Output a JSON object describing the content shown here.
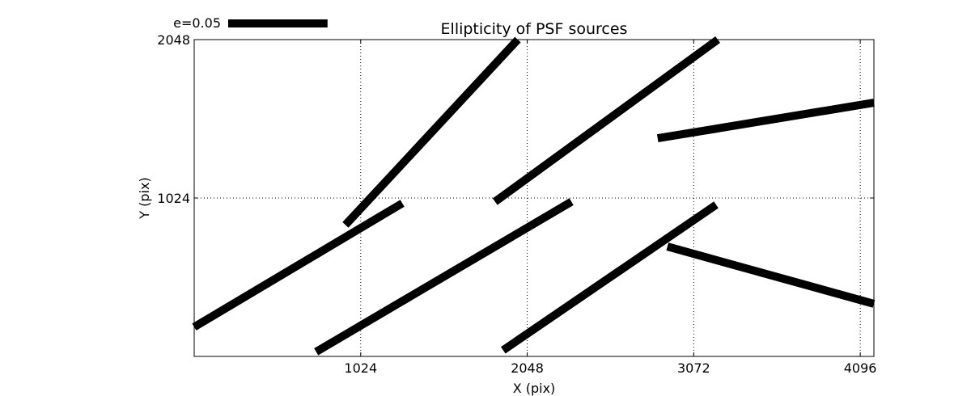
{
  "chart_data": {
    "type": "line",
    "title": "Ellipticity of PSF sources",
    "xlabel": "X (pix)",
    "ylabel": "Y (pix)",
    "xlim": [
      0,
      4180
    ],
    "ylim": [
      0,
      2048
    ],
    "xticks": [
      1024,
      2048,
      3072,
      4096
    ],
    "yticks": [
      1024,
      2048
    ],
    "xtick_labels": [
      "1024",
      "2048",
      "3072",
      "4096"
    ],
    "ytick_labels": [
      "1024",
      "2048"
    ],
    "grid": true,
    "grid_style": "dotted",
    "legend": {
      "label": "e=0.05",
      "placement": "top-left, above plot",
      "length_x_pix": 611
    },
    "stick_color": "#000000",
    "sticks": [
      {
        "x1": 0,
        "y1": 190,
        "x2": 1280,
        "y2": 990
      },
      {
        "x1": 930,
        "y1": 850,
        "x2": 1990,
        "y2": 2048
      },
      {
        "x1": 750,
        "y1": 30,
        "x2": 2320,
        "y2": 1000
      },
      {
        "x1": 1850,
        "y1": 1000,
        "x2": 3220,
        "y2": 2048
      },
      {
        "x1": 1900,
        "y1": 40,
        "x2": 3210,
        "y2": 980
      },
      {
        "x1": 2850,
        "y1": 1410,
        "x2": 4180,
        "y2": 1640
      },
      {
        "x1": 2910,
        "y1": 710,
        "x2": 4180,
        "y2": 340
      }
    ]
  }
}
